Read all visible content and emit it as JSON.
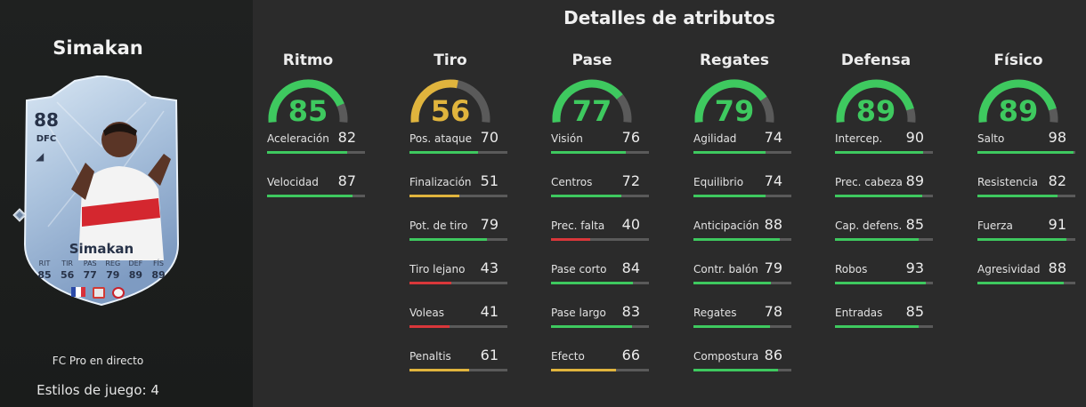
{
  "header": {
    "title": "Detalles de atributos"
  },
  "colors": {
    "high": "#3ec95f",
    "mid": "#e0b43d",
    "low": "#d9373a",
    "track": "#5a5a5a"
  },
  "player": {
    "name": "Simakan",
    "edition": "FC Pro en directo",
    "playstyles": "Estilos de juego: 4",
    "card": {
      "rating": "88",
      "position": "DFC",
      "name": "Simakan",
      "stats": [
        {
          "label": "RIT",
          "value": "85"
        },
        {
          "label": "TIR",
          "value": "56"
        },
        {
          "label": "PAS",
          "value": "77"
        },
        {
          "label": "REG",
          "value": "79"
        },
        {
          "label": "DEF",
          "value": "89"
        },
        {
          "label": "FÍS",
          "value": "89"
        }
      ]
    }
  },
  "categories": [
    {
      "label": "Ritmo",
      "value": 85,
      "attributes": [
        {
          "name": "Aceleración",
          "value": 82
        },
        {
          "name": "Velocidad",
          "value": 87
        }
      ]
    },
    {
      "label": "Tiro",
      "value": 56,
      "attributes": [
        {
          "name": "Pos. ataque",
          "value": 70
        },
        {
          "name": "Finalización",
          "value": 51
        },
        {
          "name": "Pot. de tiro",
          "value": 79
        },
        {
          "name": "Tiro lejano",
          "value": 43
        },
        {
          "name": "Voleas",
          "value": 41
        },
        {
          "name": "Penaltis",
          "value": 61
        }
      ]
    },
    {
      "label": "Pase",
      "value": 77,
      "attributes": [
        {
          "name": "Visión",
          "value": 76
        },
        {
          "name": "Centros",
          "value": 72
        },
        {
          "name": "Prec. falta",
          "value": 40
        },
        {
          "name": "Pase corto",
          "value": 84
        },
        {
          "name": "Pase largo",
          "value": 83
        },
        {
          "name": "Efecto",
          "value": 66
        }
      ]
    },
    {
      "label": "Regates",
      "value": 79,
      "attributes": [
        {
          "name": "Agilidad",
          "value": 74
        },
        {
          "name": "Equilibrio",
          "value": 74
        },
        {
          "name": "Anticipación",
          "value": 88
        },
        {
          "name": "Contr. balón",
          "value": 79
        },
        {
          "name": "Regates",
          "value": 78
        },
        {
          "name": "Compostura",
          "value": 86
        }
      ]
    },
    {
      "label": "Defensa",
      "value": 89,
      "attributes": [
        {
          "name": "Intercep.",
          "value": 90
        },
        {
          "name": "Prec. cabeza",
          "value": 89
        },
        {
          "name": "Cap. defens.",
          "value": 85
        },
        {
          "name": "Robos",
          "value": 93
        },
        {
          "name": "Entradas",
          "value": 85
        }
      ]
    },
    {
      "label": "Físico",
      "value": 89,
      "attributes": [
        {
          "name": "Salto",
          "value": 98
        },
        {
          "name": "Resistencia",
          "value": 82
        },
        {
          "name": "Fuerza",
          "value": 91
        },
        {
          "name": "Agresividad",
          "value": 88
        }
      ]
    }
  ]
}
